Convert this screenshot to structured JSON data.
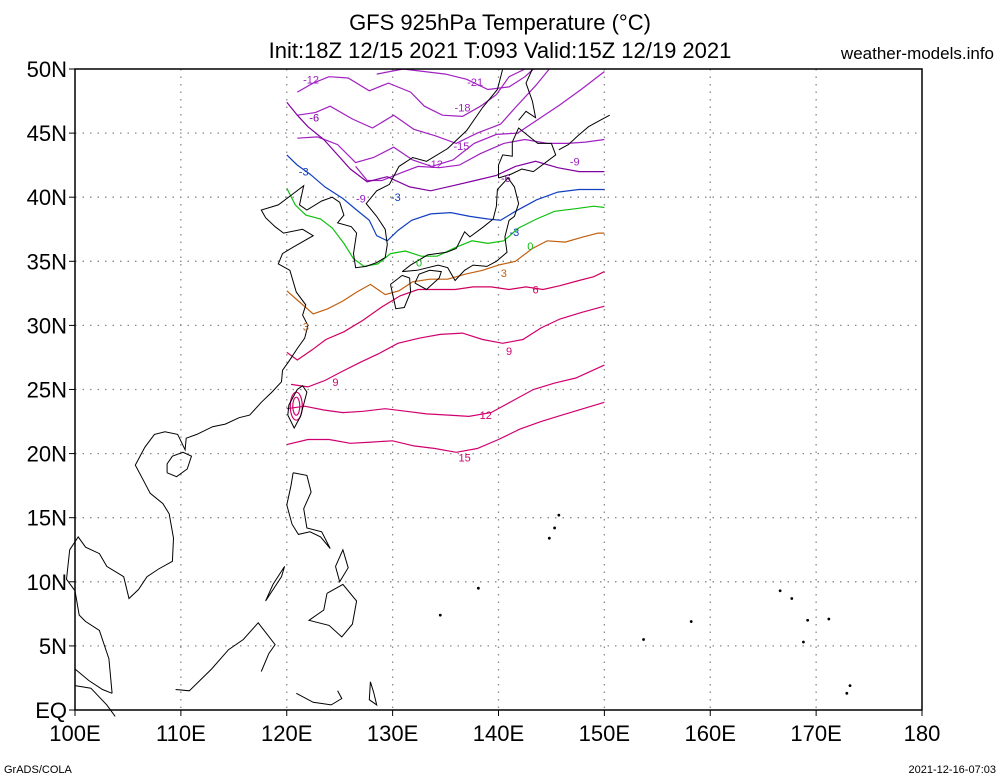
{
  "header": {
    "title_line1": "GFS 925hPa Temperature (°C)",
    "title_line2": "Init:18Z 12/15 2021 T:093 Valid:15Z 12/19 2021",
    "site": "weather-models.info"
  },
  "footer": {
    "left": "GrADS/COLA",
    "right": "2021-12-16-07:03"
  },
  "map": {
    "lon_range": [
      100,
      180
    ],
    "lat_range": [
      0,
      50
    ],
    "data_lon_range": [
      120,
      150
    ],
    "grid": true,
    "x_ticks": [
      "100E",
      "110E",
      "120E",
      "130E",
      "140E",
      "150E",
      "160E",
      "170E",
      "180"
    ],
    "y_ticks": [
      "50N",
      "45N",
      "40N",
      "35N",
      "30N",
      "25N",
      "20N",
      "15N",
      "10N",
      "5N",
      "EQ"
    ]
  },
  "contour_labels": [
    {
      "text": "-21",
      "lon": 137.8,
      "lat": 49.0,
      "color": "#a020c0"
    },
    {
      "text": "-12",
      "lon": 122.3,
      "lat": 49.2,
      "color": "#a020c0"
    },
    {
      "text": "-18",
      "lon": 136.6,
      "lat": 47.0,
      "color": "#a020c0"
    },
    {
      "text": "-6",
      "lon": 122.6,
      "lat": 46.2,
      "color": "#8000a0"
    },
    {
      "text": "-15",
      "lon": 136.5,
      "lat": 44.0,
      "color": "#a020c0"
    },
    {
      "text": "-12",
      "lon": 134.0,
      "lat": 42.6,
      "color": "#a020c0"
    },
    {
      "text": "-9",
      "lon": 147.2,
      "lat": 42.8,
      "color": "#a020c0"
    },
    {
      "text": "-6",
      "lon": 140.7,
      "lat": 41.5,
      "color": "#8000a0"
    },
    {
      "text": "-3",
      "lon": 121.6,
      "lat": 42.0,
      "color": "#1040c0"
    },
    {
      "text": "-9",
      "lon": 127.0,
      "lat": 39.9,
      "color": "#a020c0"
    },
    {
      "text": "-3",
      "lon": 130.3,
      "lat": 40.0,
      "color": "#1040c0"
    },
    {
      "text": "-3",
      "lon": 141.5,
      "lat": 37.3,
      "color": "#1040c0"
    },
    {
      "text": "0",
      "lon": 143.0,
      "lat": 36.2,
      "color": "#10c010"
    },
    {
      "text": "0",
      "lon": 132.5,
      "lat": 34.9,
      "color": "#10c010"
    },
    {
      "text": "3",
      "lon": 140.5,
      "lat": 34.1,
      "color": "#c06010"
    },
    {
      "text": "3",
      "lon": 121.8,
      "lat": 29.9,
      "color": "#c06010"
    },
    {
      "text": "6",
      "lon": 143.5,
      "lat": 32.8,
      "color": "#d00060"
    },
    {
      "text": "9",
      "lon": 141.0,
      "lat": 28.0,
      "color": "#d00070"
    },
    {
      "text": "9",
      "lon": 124.6,
      "lat": 25.6,
      "color": "#d00070"
    },
    {
      "text": "12",
      "lon": 138.8,
      "lat": 23.0,
      "color": "#d00070"
    },
    {
      "text": "15",
      "lon": 136.8,
      "lat": 19.7,
      "color": "#d00070"
    }
  ],
  "colors": {
    "grid": "#8a8a8a",
    "coast": "#000000",
    "m21": "#a020c0",
    "m18": "#a020c0",
    "m15": "#a020c0",
    "m12": "#a020c0",
    "m9": "#a020c0",
    "m6": "#8000a0",
    "m3": "#1040c0",
    "z0": "#10c010",
    "p3": "#c06010",
    "p6": "#d00060",
    "p9": "#d00070",
    "p12": "#d00070",
    "p15": "#d00070"
  }
}
